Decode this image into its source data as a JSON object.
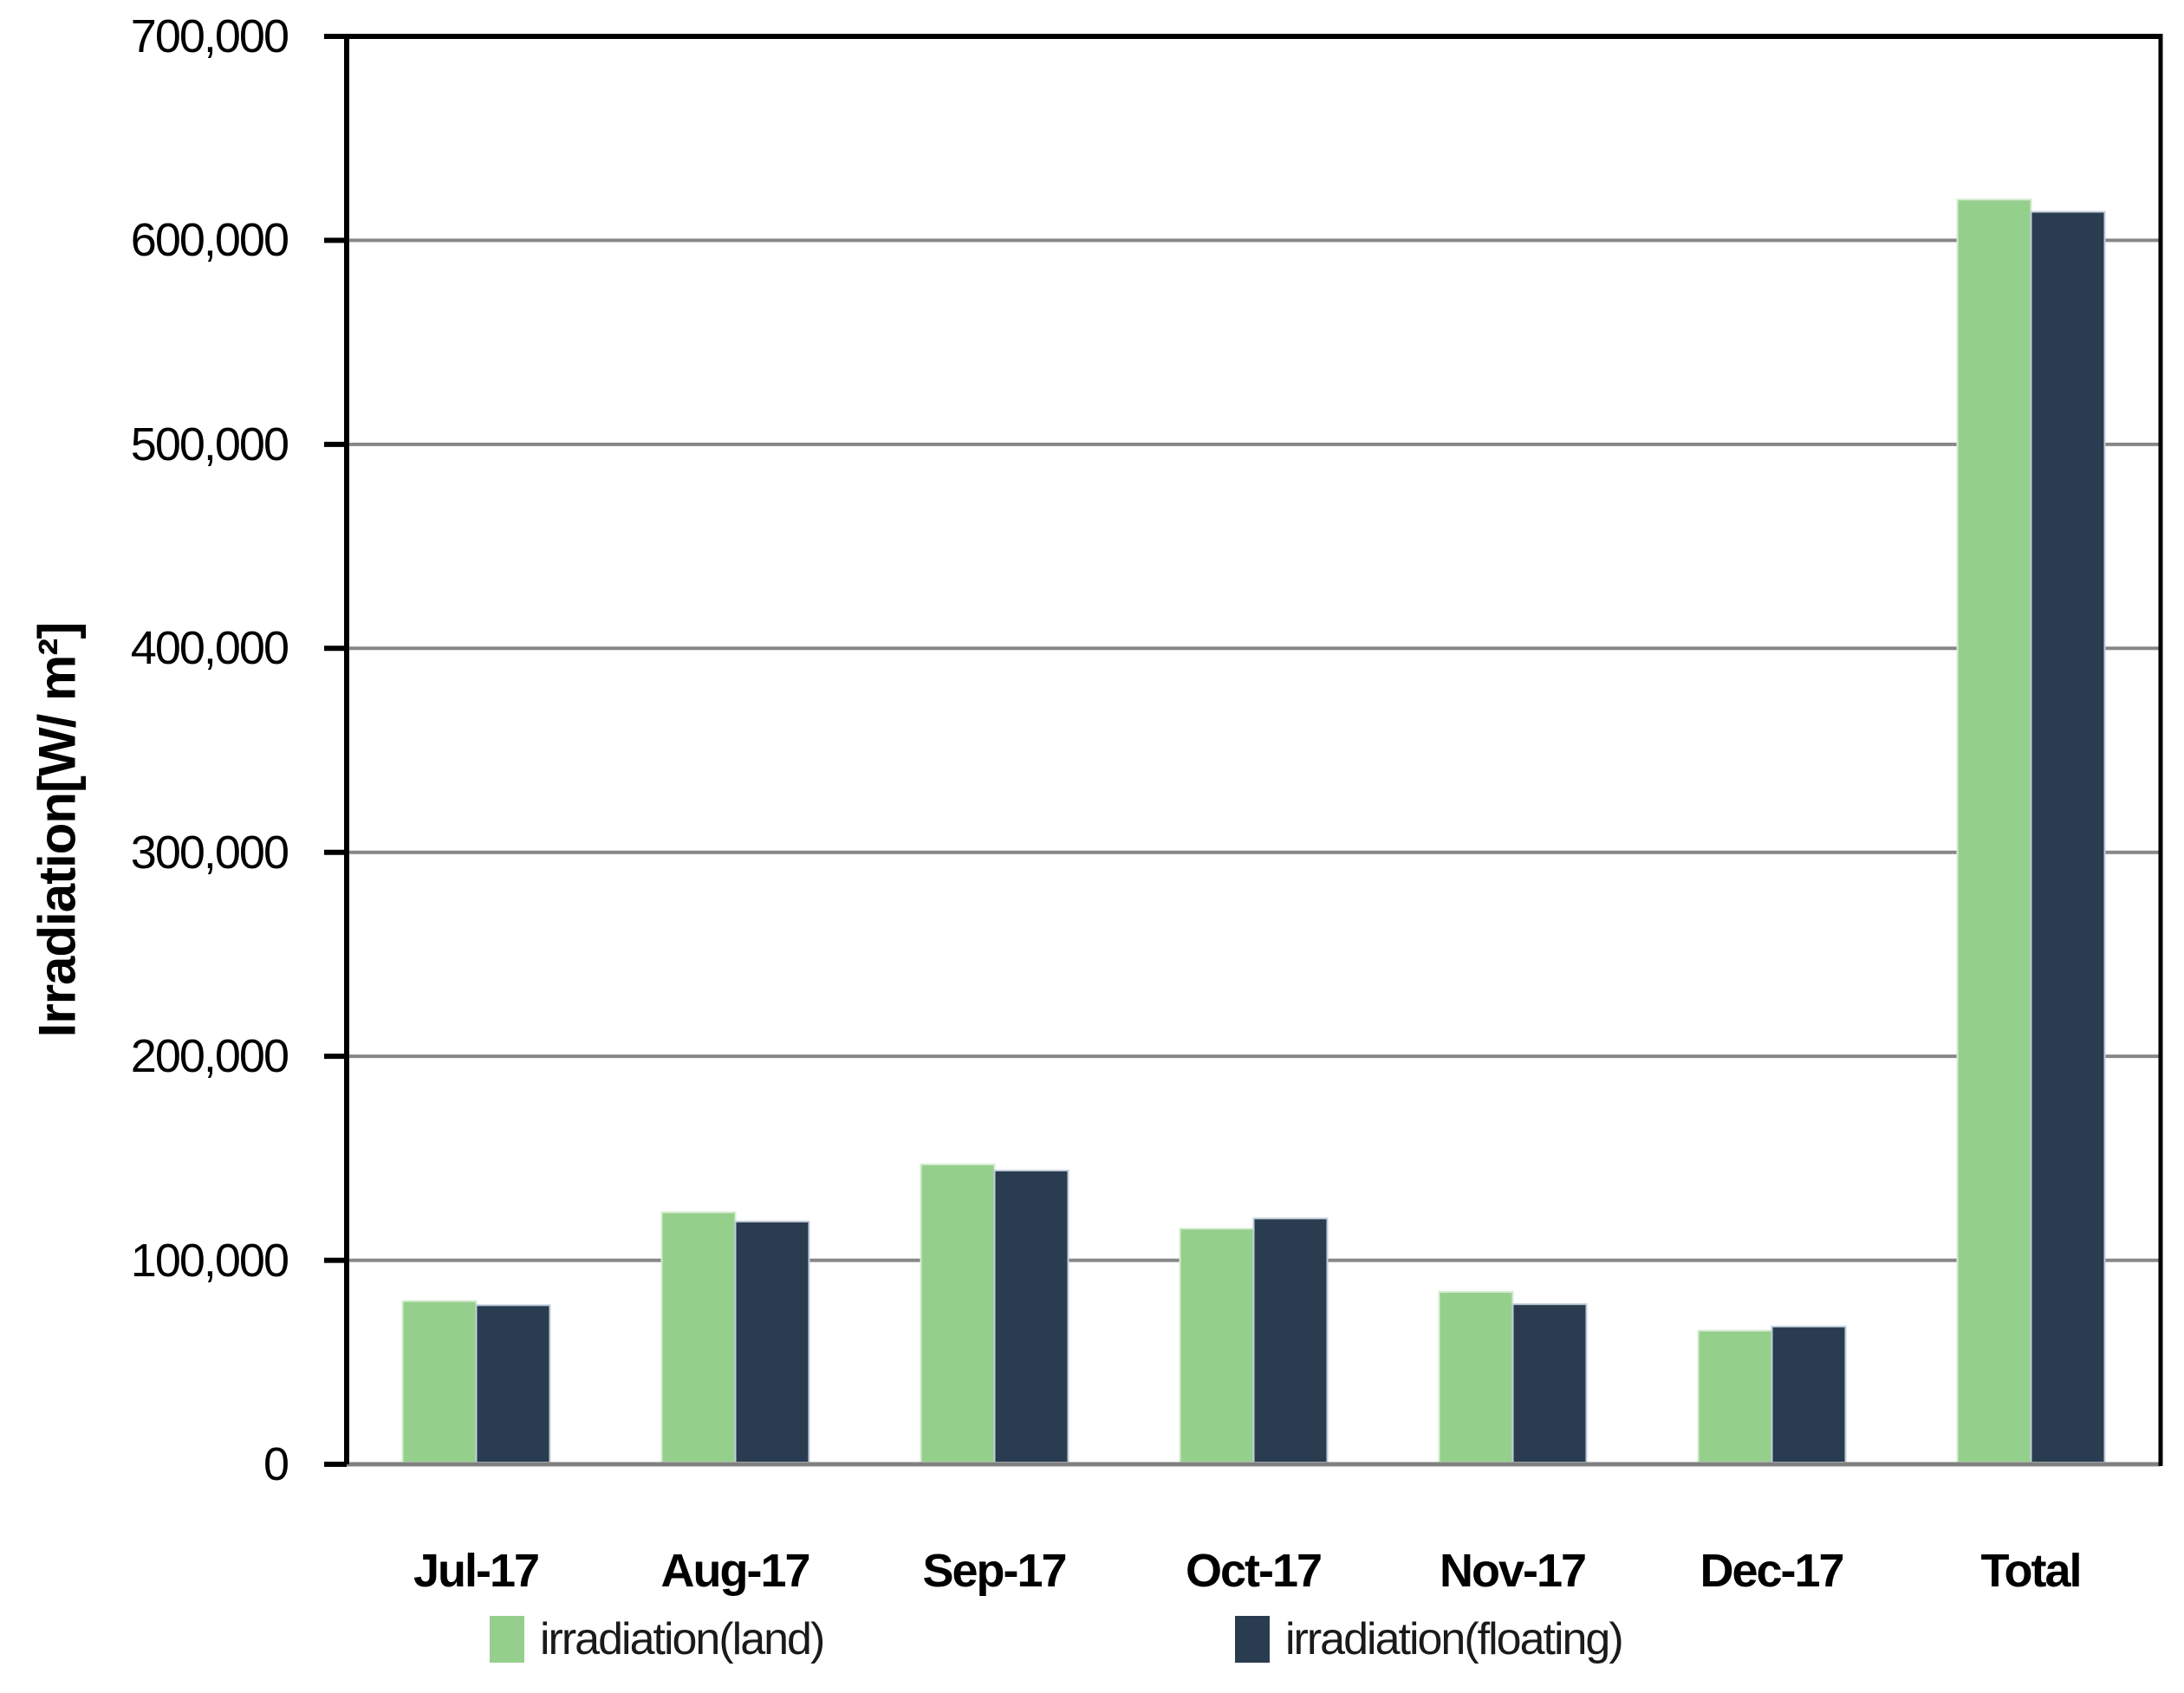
{
  "chart_data": {
    "type": "bar",
    "title": "",
    "categories": [
      "Jul-17",
      "Aug-17",
      "Sep-17",
      "Oct-17",
      "Nov-17",
      "Dec-17",
      "Total"
    ],
    "series": [
      {
        "name": "irradiation(land)",
        "color": "#95CF8C",
        "border_color": "#D6ECD0",
        "values": [
          80000,
          123500,
          147000,
          115500,
          84500,
          65500,
          620000
        ]
      },
      {
        "name": "irradiation(floating)",
        "color": "#2A3C50",
        "border_color": "#C2CEDA",
        "values": [
          78000,
          119000,
          144000,
          120500,
          78500,
          67500,
          614000
        ]
      }
    ],
    "xlabel": "",
    "ylabel": "Irradiation[W/ m²]",
    "ylim": [
      0,
      700000
    ],
    "ytick_step": 100000,
    "ytick_labels": [
      "0",
      "100,000",
      "200,000",
      "300,000",
      "400,000",
      "500,000",
      "600,000",
      "700,000"
    ],
    "grid": true,
    "legend_position": "bottom"
  },
  "colors": {
    "background": "#FFFFFF",
    "gridline": "#878787",
    "zero_axis": "#808080",
    "axis_frame": "#000000",
    "tick_label": "#000000",
    "legend_text": "#1A1A1A"
  }
}
